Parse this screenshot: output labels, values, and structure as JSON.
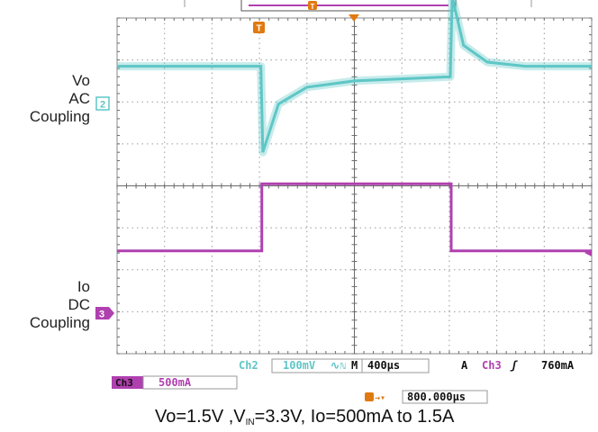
{
  "chart_data": {
    "type": "line",
    "grid": true,
    "x_divisions": 10,
    "y_divisions": 8,
    "series": [
      {
        "channel": "Ch2",
        "color": "#5fc6c6",
        "x_div": [
          0,
          3.03,
          3.07,
          3.4,
          4.0,
          5.0,
          6.0,
          7.02,
          7.06,
          7.3,
          7.8,
          8.6,
          10
        ],
        "y_div": [
          6.85,
          6.85,
          4.8,
          5.95,
          6.35,
          6.5,
          6.55,
          6.6,
          8.5,
          7.35,
          6.95,
          6.85,
          6.85
        ]
      },
      {
        "channel": "Ch3",
        "color": "#b040b0",
        "x_div": [
          0,
          3.05,
          3.05,
          7.04,
          7.04,
          10
        ],
        "y_div": [
          2.45,
          2.45,
          4.05,
          4.05,
          2.45,
          2.45
        ]
      }
    ]
  },
  "labels": {
    "vo_line1": "Vo",
    "vo_line2": "AC",
    "vo_line3": "Coupling",
    "io_line1": "Io",
    "io_line2": "DC",
    "io_line3": "Coupling"
  },
  "markers": {
    "ch2": "2",
    "ch3": "3",
    "trigger": "T",
    "top_trigger": "T"
  },
  "scope_bar": {
    "ch2_label": "Ch2",
    "ch2_scale": "100mV",
    "ch2_bw": "∿",
    "ch2_bw2": "ℕ",
    "time_prefix": "M",
    "time_div": "400µs",
    "acq": "A",
    "trig_ch": "Ch3",
    "trig_slope": "ʃ",
    "trig_level": "760mA",
    "ch3_label": "Ch3",
    "ch3_scale": "500mA",
    "trig_pos_arrow": "→▾",
    "trig_pos": "800.000µs"
  },
  "caption": {
    "part1": "Vo=1.5V ,V",
    "sub": "IN",
    "part2": "=3.3V, Io=500mA to 1.5A"
  },
  "colors": {
    "ch2": "#5fc6c6",
    "ch3": "#b040b0",
    "trigger": "#e07a10",
    "grid": "#9a9a9a"
  }
}
